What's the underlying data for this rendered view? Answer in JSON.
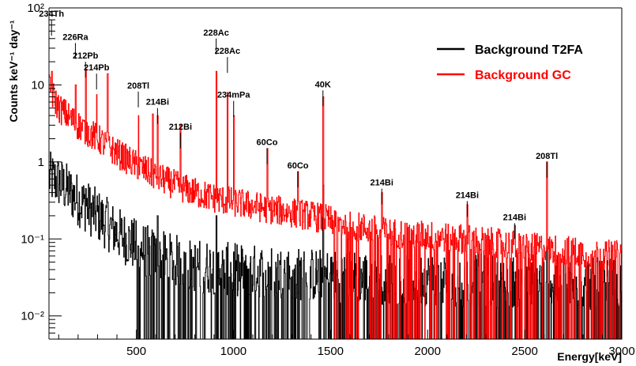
{
  "chart_data": {
    "type": "line",
    "title": "",
    "xlabel": "Energy[keV]",
    "ylabel": "Counts keV⁻¹ day⁻¹",
    "xlim": [
      50,
      3000
    ],
    "ylim": [
      0.005,
      100
    ],
    "y_scale": "log",
    "x_ticks": [
      "500",
      "1000",
      "1500",
      "2000",
      "2500",
      "3000"
    ],
    "y_ticks": [
      "10⁻²",
      "10⁻¹",
      "1",
      "10",
      "10²"
    ],
    "legend_position": "top-right",
    "grid": false,
    "series": [
      {
        "name": "Background T2FA",
        "color": "#000000",
        "baseline": [
          [
            50,
            0.62
          ],
          [
            100,
            0.55
          ],
          [
            200,
            0.32
          ],
          [
            300,
            0.2
          ],
          [
            400,
            0.12
          ],
          [
            500,
            0.08
          ],
          [
            600,
            0.06
          ],
          [
            800,
            0.045
          ],
          [
            1000,
            0.04
          ],
          [
            1500,
            0.033
          ],
          [
            2000,
            0.03
          ],
          [
            2500,
            0.028
          ],
          [
            3000,
            0.025
          ]
        ],
        "peaks": [
          [
            238,
            0.45
          ],
          [
            352,
            0.3
          ],
          [
            609,
            0.2
          ],
          [
            911,
            0.2
          ],
          [
            1461,
            0.5
          ],
          [
            2614,
            0.08
          ]
        ]
      },
      {
        "name": "Background GC",
        "color": "#ff0000",
        "baseline": [
          [
            50,
            9.0
          ],
          [
            100,
            5.0
          ],
          [
            200,
            3.0
          ],
          [
            300,
            2.0
          ],
          [
            400,
            1.3
          ],
          [
            500,
            0.9
          ],
          [
            600,
            0.65
          ],
          [
            700,
            0.5
          ],
          [
            800,
            0.4
          ],
          [
            900,
            0.34
          ],
          [
            1000,
            0.3
          ],
          [
            1200,
            0.24
          ],
          [
            1400,
            0.2
          ],
          [
            1600,
            0.15
          ],
          [
            1800,
            0.12
          ],
          [
            2000,
            0.11
          ],
          [
            2200,
            0.1
          ],
          [
            2400,
            0.085
          ],
          [
            2600,
            0.075
          ],
          [
            3000,
            0.06
          ]
        ],
        "peaks": [
          [
            63,
            15
          ],
          [
            186,
            10
          ],
          [
            238,
            16
          ],
          [
            295,
            7.5
          ],
          [
            352,
            14
          ],
          [
            510,
            4.0
          ],
          [
            583,
            4.2
          ],
          [
            609,
            4.0
          ],
          [
            727,
            3.0
          ],
          [
            911,
            15
          ],
          [
            969,
            8.0
          ],
          [
            1001,
            4.0
          ],
          [
            1173,
            1.5
          ],
          [
            1332,
            0.75
          ],
          [
            1461,
            7.0
          ],
          [
            1764,
            0.4
          ],
          [
            2204,
            0.28
          ],
          [
            2448,
            0.15
          ],
          [
            2614,
            1.0
          ]
        ]
      }
    ],
    "annotations": [
      {
        "text": "234Th",
        "x": 63,
        "y": 70
      },
      {
        "text": "226Ra",
        "x": 186,
        "y": 35
      },
      {
        "text": "212Pb",
        "x": 238,
        "y": 20
      },
      {
        "text": "214Pb",
        "x": 295,
        "y": 14
      },
      {
        "text": "208Tl",
        "x": 510,
        "y": 8.2
      },
      {
        "text": "214Bi",
        "x": 609,
        "y": 5.0
      },
      {
        "text": "212Bi",
        "x": 727,
        "y": 2.4
      },
      {
        "text": "228Ac",
        "x": 911,
        "y": 40
      },
      {
        "text": "228Ac",
        "x": 969,
        "y": 23
      },
      {
        "text": "234mPa",
        "x": 1001,
        "y": 6.2
      },
      {
        "text": "60Co",
        "x": 1173,
        "y": 1.5
      },
      {
        "text": "60Co",
        "x": 1332,
        "y": 0.75
      },
      {
        "text": "40K",
        "x": 1461,
        "y": 8.5
      },
      {
        "text": "214Bi",
        "x": 1764,
        "y": 0.45
      },
      {
        "text": "214Bi",
        "x": 2204,
        "y": 0.31
      },
      {
        "text": "214Bi",
        "x": 2448,
        "y": 0.16
      },
      {
        "text": "208Tl",
        "x": 2614,
        "y": 1.0
      }
    ]
  }
}
